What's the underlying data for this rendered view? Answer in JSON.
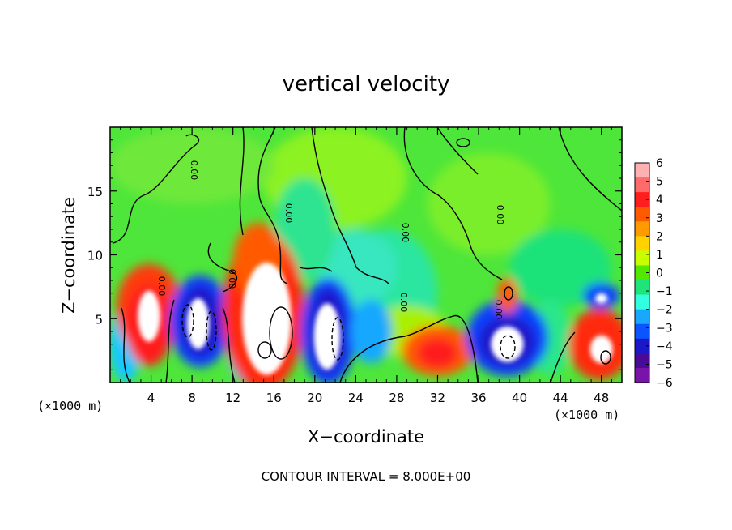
{
  "chart_data": {
    "type": "heatmap",
    "title": "vertical velocity",
    "xlabel": "X−coordinate",
    "ylabel": "Z−coordinate",
    "x_unit": "(×1000 m)",
    "z_unit": "(×1000 m)",
    "footer": "CONTOUR INTERVAL = 8.000E+00",
    "xlim": [
      0,
      50
    ],
    "ylim": [
      0,
      20
    ],
    "x_ticks": [
      4,
      8,
      12,
      16,
      20,
      24,
      28,
      32,
      36,
      40,
      44,
      48
    ],
    "y_ticks": [
      5,
      10,
      15
    ],
    "colorbar": {
      "range": [
        -6,
        6
      ],
      "tick_labels": [
        "6",
        "5",
        "4",
        "3",
        "2",
        "1",
        "0",
        "−1",
        "−2",
        "−3",
        "−4",
        "−5",
        "−6"
      ],
      "colors": [
        "#ffb0b0",
        "#ff6b6b",
        "#ff1e1e",
        "#ff5a00",
        "#ff9a00",
        "#ffd200",
        "#c8ff00",
        "#52e800",
        "#1fe47a",
        "#33ffe0",
        "#19a8ff",
        "#0a55ff",
        "#1a18c8",
        "#4a0a98",
        "#7a13a8"
      ]
    },
    "contour_labels": [
      "0.00",
      "0.00",
      "0.00",
      "0.00",
      "0.00",
      "0.00",
      "0.00",
      "0.00"
    ],
    "features": [
      {
        "x": 4,
        "z": 5,
        "value": 8
      },
      {
        "x": 9,
        "z": 4.5,
        "value": -8
      },
      {
        "x": 15,
        "z": 5,
        "value": 12
      },
      {
        "x": 21.5,
        "z": 3.8,
        "value": -9
      },
      {
        "x": 32,
        "z": 2.5,
        "value": 3
      },
      {
        "x": 39,
        "z": 3,
        "value": -9
      },
      {
        "x": 48,
        "z": 2.4,
        "value": 8
      },
      {
        "x": 48,
        "z": 6.5,
        "value": -6
      }
    ]
  }
}
